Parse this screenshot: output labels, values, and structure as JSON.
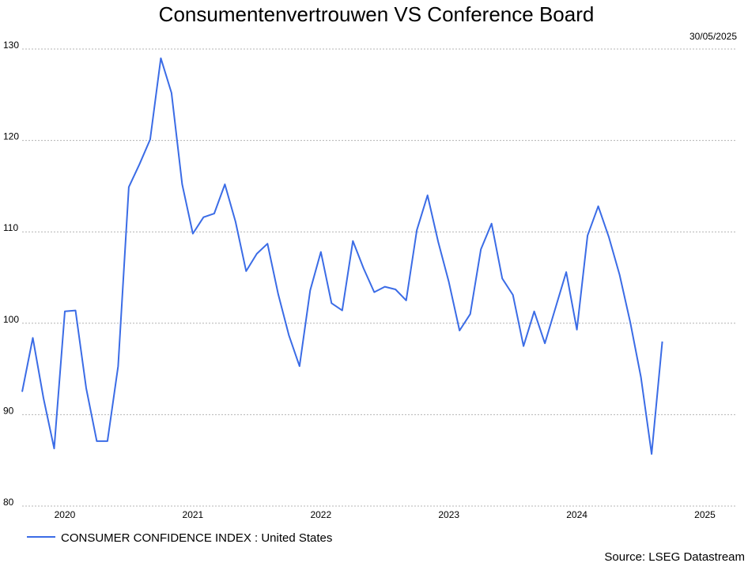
{
  "chart_data": {
    "type": "line",
    "title": "Consumentenvertrouwen VS Conference Board",
    "date_label": "30/05/2025",
    "source": "Source: LSEG Datastream",
    "ylim": [
      80,
      130
    ],
    "yticks": [
      80,
      90,
      100,
      110,
      120,
      130
    ],
    "xlim": [
      "2019-10",
      "2025-05"
    ],
    "xticks": [
      {
        "label": "2020",
        "at": "2020-02"
      },
      {
        "label": "2021",
        "at": "2021-02"
      },
      {
        "label": "2022",
        "at": "2022-02"
      },
      {
        "label": "2023",
        "at": "2023-02"
      },
      {
        "label": "2024",
        "at": "2024-02"
      },
      {
        "label": "2025",
        "at": "2025-02"
      }
    ],
    "grid": true,
    "legend_position": "bottom-left",
    "series": [
      {
        "name": "CONSUMER CONFIDENCE INDEX : United States",
        "color": "#3b6ce6",
        "points": [
          [
            "2019-10",
            92.5
          ],
          [
            "2019-11",
            98.4
          ],
          [
            "2019-12",
            91.8
          ],
          [
            "2020-01",
            86.3
          ],
          [
            "2020-02",
            101.3
          ],
          [
            "2020-03",
            101.4
          ],
          [
            "2020-04",
            92.9
          ],
          [
            "2020-05",
            87.1
          ],
          [
            "2020-06",
            87.1
          ],
          [
            "2020-07",
            95.3
          ],
          [
            "2020-08",
            114.9
          ],
          [
            "2020-09",
            117.4
          ],
          [
            "2020-10",
            120.1
          ],
          [
            "2020-11",
            129.0
          ],
          [
            "2020-12",
            125.2
          ],
          [
            "2021-01",
            115.2
          ],
          [
            "2021-02",
            109.8
          ],
          [
            "2021-03",
            111.6
          ],
          [
            "2021-04",
            112.0
          ],
          [
            "2021-05",
            115.2
          ],
          [
            "2021-06",
            111.1
          ],
          [
            "2021-07",
            105.7
          ],
          [
            "2021-08",
            107.6
          ],
          [
            "2021-09",
            108.7
          ],
          [
            "2021-10",
            103.2
          ],
          [
            "2021-11",
            98.7
          ],
          [
            "2021-12",
            95.3
          ],
          [
            "2022-01",
            103.6
          ],
          [
            "2022-02",
            107.8
          ],
          [
            "2022-03",
            102.2
          ],
          [
            "2022-04",
            101.4
          ],
          [
            "2022-05",
            109.0
          ],
          [
            "2022-06",
            106.0
          ],
          [
            "2022-07",
            103.4
          ],
          [
            "2022-08",
            104.0
          ],
          [
            "2022-09",
            103.7
          ],
          [
            "2022-10",
            102.5
          ],
          [
            "2022-11",
            110.2
          ],
          [
            "2022-12",
            114.0
          ],
          [
            "2023-01",
            108.9
          ],
          [
            "2023-02",
            104.5
          ],
          [
            "2023-03",
            99.2
          ],
          [
            "2023-04",
            101.0
          ],
          [
            "2023-05",
            108.1
          ],
          [
            "2023-06",
            110.9
          ],
          [
            "2023-07",
            104.9
          ],
          [
            "2023-08",
            103.1
          ],
          [
            "2023-09",
            97.5
          ],
          [
            "2023-10",
            101.3
          ],
          [
            "2023-11",
            97.8
          ],
          [
            "2023-12",
            101.7
          ],
          [
            "2024-01",
            105.6
          ],
          [
            "2024-02",
            99.3
          ],
          [
            "2024-03",
            109.6
          ],
          [
            "2024-04",
            112.8
          ],
          [
            "2024-05",
            109.4
          ],
          [
            "2024-06",
            105.3
          ],
          [
            "2024-07",
            100.1
          ],
          [
            "2024-08",
            94.1
          ],
          [
            "2024-09",
            85.7
          ],
          [
            "2024-10",
            98.0
          ]
        ]
      }
    ]
  }
}
